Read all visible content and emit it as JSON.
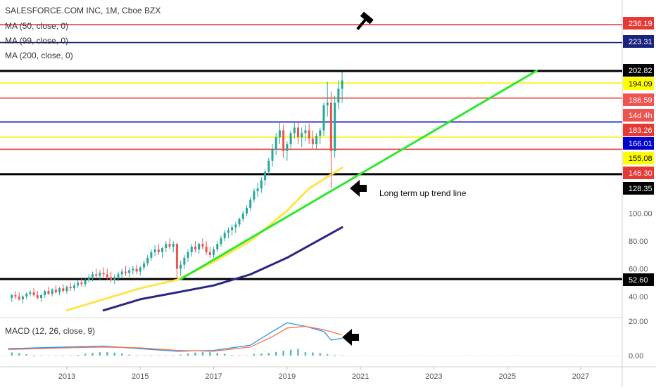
{
  "header": {
    "title": "SALESFORCE.COM INC, 1M, Cboe BZX",
    "indicators": [
      "MA (50, close, 0)",
      "MA (99, close, 0)",
      "MA (200, close, 0)"
    ],
    "macd_label": "MACD (12, 26, close, 9)"
  },
  "annotations": {
    "trend_text": "Long term up trend line"
  },
  "chart_data": [
    {
      "type": "candlestick",
      "title": "SALESFORCE.COM INC, 1M, Cboe BZX",
      "x_ticks": [
        "2013",
        "2015",
        "2017",
        "2019",
        "2021",
        "2023",
        "2025",
        "2027"
      ],
      "y_ticks": [
        40.0,
        60.0,
        80.0,
        100.0
      ],
      "x_range": [
        2011.4,
        2028.5
      ],
      "y_range": [
        30,
        255
      ],
      "grid": false,
      "price_labels": [
        {
          "value": "236.19",
          "color": "#e53935",
          "text_color": "#ffffff"
        },
        {
          "value": "223.31",
          "color": "#1a237e",
          "text_color": "#ffffff"
        },
        {
          "value": "202.82",
          "color": "#000000",
          "text_color": "#ffffff"
        },
        {
          "value": "194.09",
          "color": "#ffff00",
          "text_color": "#000000"
        },
        {
          "value": "186.59",
          "color": "#ef5350",
          "text_color": "#ffffff"
        },
        {
          "value": "14d 4h",
          "color": "#ef5350",
          "text_color": "#ffffff"
        },
        {
          "value": "183.26",
          "color": "#e53935",
          "text_color": "#ffffff"
        },
        {
          "value": "166.01",
          "color": "#0000cc",
          "text_color": "#ffffff"
        },
        {
          "value": "155.08",
          "color": "#ffff00",
          "text_color": "#000000"
        },
        {
          "value": "146.30",
          "color": "#e53935",
          "text_color": "#ffffff"
        },
        {
          "value": "128.35",
          "color": "#000000",
          "text_color": "#ffffff"
        },
        {
          "value": "52.60",
          "color": "#000000",
          "text_color": "#ffffff"
        }
      ],
      "horizontal_levels": [
        {
          "value": 236.19,
          "color": "#e53935"
        },
        {
          "value": 223.31,
          "color": "#1a237e"
        },
        {
          "value": 202.82,
          "color": "#000000"
        },
        {
          "value": 194.09,
          "color": "#ffee00"
        },
        {
          "value": 183.26,
          "color": "#e53935"
        },
        {
          "value": 166.01,
          "color": "#0000cc"
        },
        {
          "value": 155.08,
          "color": "#ffee00"
        },
        {
          "value": 146.3,
          "color": "#e53935"
        },
        {
          "value": 128.35,
          "color": "#000000"
        },
        {
          "value": 52.6,
          "color": "#000000"
        }
      ],
      "trend_line": {
        "from": [
          2016.1,
          52.6
        ],
        "to": [
          2025.8,
          203
        ],
        "color": "#2ee82e"
      },
      "moving_averages": [
        {
          "name": "MA (50, close, 0)",
          "color": "#ffe44d",
          "points": [
            [
              2013.0,
              30
            ],
            [
              2014.0,
              38
            ],
            [
              2015.0,
              46
            ],
            [
              2016.0,
              52
            ],
            [
              2017.0,
              65
            ],
            [
              2018.0,
              80
            ],
            [
              2019.0,
              102
            ],
            [
              2019.6,
              118
            ],
            [
              2020.5,
              133
            ]
          ]
        },
        {
          "name": "MA (200, close, 0)",
          "color": "#2a2585",
          "points": [
            [
              2014.0,
              30
            ],
            [
              2015.0,
              38
            ],
            [
              2016.0,
              43
            ],
            [
              2017.0,
              48
            ],
            [
              2018.0,
              56
            ],
            [
              2019.0,
              68
            ],
            [
              2020.5,
              90
            ]
          ]
        }
      ],
      "candles": [
        [
          2011.5,
          39,
          42,
          36,
          41
        ],
        [
          2011.6,
          41,
          44,
          38,
          40
        ],
        [
          2011.7,
          40,
          43,
          37,
          38
        ],
        [
          2011.8,
          38,
          41,
          35,
          40
        ],
        [
          2011.9,
          40,
          43,
          38,
          42
        ],
        [
          2012.0,
          42,
          45,
          40,
          43
        ],
        [
          2012.1,
          43,
          46,
          40,
          41
        ],
        [
          2012.2,
          41,
          44,
          38,
          39
        ],
        [
          2012.3,
          39,
          42,
          36,
          41
        ],
        [
          2012.4,
          41,
          45,
          39,
          44
        ],
        [
          2012.5,
          44,
          47,
          41,
          42
        ],
        [
          2012.6,
          42,
          46,
          40,
          45
        ],
        [
          2012.7,
          45,
          48,
          42,
          43
        ],
        [
          2012.8,
          43,
          47,
          41,
          46
        ],
        [
          2012.9,
          46,
          49,
          43,
          44
        ],
        [
          2013.0,
          44,
          48,
          42,
          47
        ],
        [
          2013.1,
          47,
          50,
          44,
          46
        ],
        [
          2013.2,
          46,
          50,
          44,
          48
        ],
        [
          2013.3,
          48,
          52,
          46,
          50
        ],
        [
          2013.4,
          50,
          54,
          47,
          49
        ],
        [
          2013.5,
          49,
          53,
          47,
          52
        ],
        [
          2013.6,
          52,
          56,
          50,
          54
        ],
        [
          2013.7,
          54,
          58,
          51,
          56
        ],
        [
          2013.8,
          56,
          60,
          53,
          55
        ],
        [
          2013.9,
          55,
          59,
          52,
          57
        ],
        [
          2014.0,
          57,
          61,
          54,
          56
        ],
        [
          2014.1,
          56,
          60,
          52,
          54
        ],
        [
          2014.2,
          54,
          58,
          50,
          52
        ],
        [
          2014.3,
          52,
          56,
          49,
          54
        ],
        [
          2014.4,
          54,
          58,
          51,
          56
        ],
        [
          2014.5,
          56,
          60,
          53,
          58
        ],
        [
          2014.6,
          58,
          62,
          55,
          57
        ],
        [
          2014.7,
          57,
          61,
          54,
          59
        ],
        [
          2014.8,
          59,
          62,
          56,
          60
        ],
        [
          2014.9,
          60,
          63,
          56,
          58
        ],
        [
          2015.0,
          58,
          62,
          55,
          61
        ],
        [
          2015.1,
          61,
          66,
          59,
          64
        ],
        [
          2015.2,
          64,
          70,
          62,
          68
        ],
        [
          2015.3,
          68,
          74,
          66,
          72
        ],
        [
          2015.4,
          72,
          77,
          69,
          74
        ],
        [
          2015.5,
          74,
          78,
          70,
          72
        ],
        [
          2015.6,
          72,
          76,
          68,
          75
        ],
        [
          2015.7,
          75,
          80,
          72,
          78
        ],
        [
          2015.8,
          78,
          82,
          74,
          76
        ],
        [
          2015.9,
          76,
          80,
          72,
          78
        ],
        [
          2016.0,
          78,
          79,
          53,
          60
        ],
        [
          2016.1,
          60,
          66,
          55,
          63
        ],
        [
          2016.2,
          63,
          70,
          60,
          68
        ],
        [
          2016.3,
          68,
          74,
          65,
          72
        ],
        [
          2016.4,
          72,
          78,
          69,
          76
        ],
        [
          2016.5,
          76,
          80,
          72,
          74
        ],
        [
          2016.6,
          74,
          79,
          71,
          78
        ],
        [
          2016.7,
          78,
          82,
          74,
          76
        ],
        [
          2016.8,
          76,
          80,
          70,
          72
        ],
        [
          2016.9,
          72,
          76,
          68,
          70
        ],
        [
          2017.0,
          70,
          76,
          68,
          74
        ],
        [
          2017.1,
          74,
          80,
          72,
          78
        ],
        [
          2017.2,
          78,
          84,
          76,
          82
        ],
        [
          2017.3,
          82,
          88,
          80,
          86
        ],
        [
          2017.4,
          86,
          90,
          82,
          88
        ],
        [
          2017.5,
          88,
          92,
          84,
          90
        ],
        [
          2017.6,
          90,
          94,
          86,
          92
        ],
        [
          2017.7,
          92,
          97,
          90,
          96
        ],
        [
          2017.8,
          96,
          102,
          94,
          100
        ],
        [
          2017.9,
          100,
          106,
          98,
          104
        ],
        [
          2018.0,
          104,
          112,
          102,
          110
        ],
        [
          2018.1,
          110,
          118,
          108,
          116
        ],
        [
          2018.2,
          116,
          122,
          112,
          118
        ],
        [
          2018.3,
          118,
          126,
          115,
          124
        ],
        [
          2018.4,
          124,
          132,
          120,
          130
        ],
        [
          2018.5,
          130,
          140,
          128,
          138
        ],
        [
          2018.6,
          138,
          150,
          134,
          146
        ],
        [
          2018.7,
          146,
          158,
          142,
          155
        ],
        [
          2018.8,
          155,
          166,
          150,
          160
        ],
        [
          2018.9,
          160,
          164,
          140,
          145
        ],
        [
          2019.0,
          145,
          152,
          138,
          150
        ],
        [
          2019.1,
          150,
          160,
          146,
          158
        ],
        [
          2019.2,
          158,
          166,
          154,
          162
        ],
        [
          2019.3,
          162,
          166,
          150,
          155
        ],
        [
          2019.4,
          155,
          162,
          148,
          158
        ],
        [
          2019.5,
          158,
          164,
          152,
          160
        ],
        [
          2019.6,
          160,
          165,
          150,
          154
        ],
        [
          2019.7,
          154,
          160,
          146,
          150
        ],
        [
          2019.8,
          150,
          158,
          146,
          156
        ],
        [
          2019.9,
          156,
          162,
          150,
          160
        ],
        [
          2020.0,
          160,
          180,
          156,
          178
        ],
        [
          2020.1,
          178,
          195,
          170,
          180
        ],
        [
          2020.2,
          180,
          188,
          118,
          145
        ],
        [
          2020.3,
          145,
          185,
          140,
          180
        ],
        [
          2020.4,
          180,
          196,
          175,
          190
        ],
        [
          2020.5,
          190,
          202,
          180,
          196
        ]
      ]
    },
    {
      "type": "macd",
      "title": "MACD (12, 26, close, 9)",
      "y_ticks": [
        20.0,
        0.0
      ],
      "y_range": [
        -3,
        22
      ],
      "series": [
        {
          "color": "#2196f3",
          "points": [
            [
              2011.4,
              4
            ],
            [
              2013.0,
              5
            ],
            [
              2014.0,
              5.5
            ],
            [
              2015.0,
              4
            ],
            [
              2016.0,
              2.5
            ],
            [
              2017.0,
              3
            ],
            [
              2018.0,
              6
            ],
            [
              2018.6,
              14
            ],
            [
              2019.0,
              19
            ],
            [
              2019.5,
              17
            ],
            [
              2020.0,
              14
            ],
            [
              2020.2,
              9
            ],
            [
              2020.5,
              10
            ]
          ]
        },
        {
          "color": "#ff7043",
          "points": [
            [
              2011.4,
              3.5
            ],
            [
              2013.0,
              4.5
            ],
            [
              2014.0,
              5
            ],
            [
              2015.0,
              4.5
            ],
            [
              2016.0,
              3
            ],
            [
              2017.0,
              2.5
            ],
            [
              2018.0,
              5
            ],
            [
              2018.6,
              11
            ],
            [
              2019.0,
              16
            ],
            [
              2019.5,
              17
            ],
            [
              2020.0,
              15
            ],
            [
              2020.5,
              12
            ]
          ]
        }
      ]
    }
  ]
}
